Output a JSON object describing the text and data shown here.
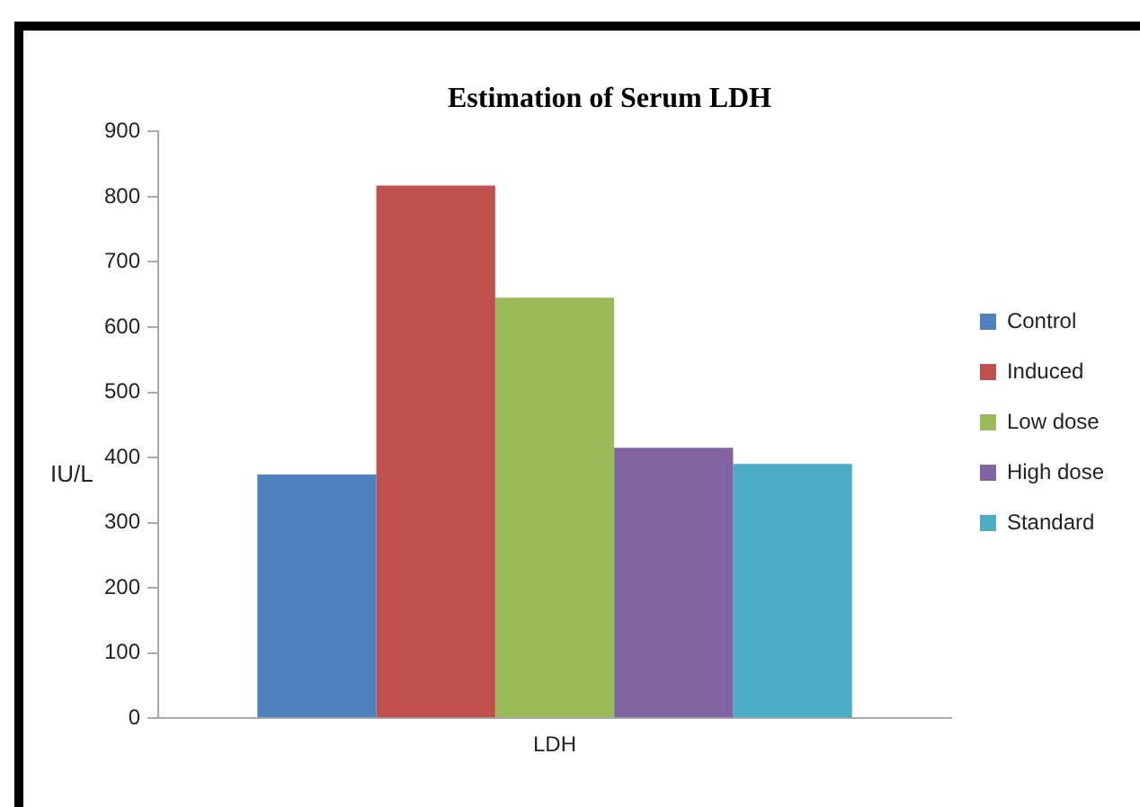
{
  "chart_data": {
    "type": "bar",
    "title": "Estimation of Serum LDH",
    "ylabel": "IU/L",
    "categories": [
      "LDH"
    ],
    "series": [
      {
        "name": "Control",
        "color": "#4f81bd",
        "values": [
          374
        ]
      },
      {
        "name": "Induced",
        "color": "#c0504d",
        "values": [
          817
        ]
      },
      {
        "name": "Low dose",
        "color": "#9bbb59",
        "values": [
          645
        ]
      },
      {
        "name": "High dose",
        "color": "#8064a2",
        "values": [
          415
        ]
      },
      {
        "name": "Standard",
        "color": "#4bacc6",
        "values": [
          390
        ]
      }
    ],
    "ylim": [
      0,
      900
    ],
    "yticks": [
      0,
      100,
      200,
      300,
      400,
      500,
      600,
      700,
      800,
      900
    ],
    "grid": false,
    "legend": "right"
  }
}
